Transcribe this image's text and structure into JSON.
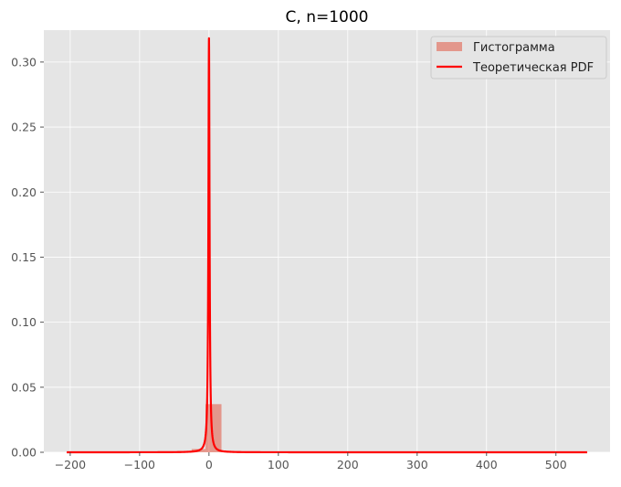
{
  "chart_data": {
    "type": "histogram",
    "title": "C, n=1000",
    "xlabel": "",
    "ylabel": "",
    "xlim": [
      -238,
      578
    ],
    "ylim": [
      0,
      0.3245
    ],
    "xticks": [
      -200,
      -100,
      0,
      100,
      200,
      300,
      400,
      500
    ],
    "xtick_labels": [
      "−200",
      "−100",
      "0",
      "100",
      "200",
      "300",
      "400",
      "500"
    ],
    "yticks": [
      0.0,
      0.05,
      0.1,
      0.15,
      0.2,
      0.25,
      0.3
    ],
    "ytick_labels": [
      "0.00",
      "0.05",
      "0.10",
      "0.15",
      "0.20",
      "0.25",
      "0.30"
    ],
    "grid": true,
    "legend_position": "top-right",
    "histogram": {
      "name": "Гистограмма",
      "color": "#E24A33",
      "opacity": 0.5,
      "bins": [
        {
          "x0": -205,
          "x1": -185,
          "density": 5e-05
        },
        {
          "x0": -185,
          "x1": -165,
          "density": 5e-05
        },
        {
          "x0": -165,
          "x1": -145,
          "density": 0.0001
        },
        {
          "x0": -145,
          "x1": -125,
          "density": 0.0001
        },
        {
          "x0": -125,
          "x1": -105,
          "density": 0.00015
        },
        {
          "x0": -105,
          "x1": -85,
          "density": 0.0002
        },
        {
          "x0": -85,
          "x1": -65,
          "density": 0.00025
        },
        {
          "x0": -65,
          "x1": -45,
          "density": 0.0004
        },
        {
          "x0": -45,
          "x1": -25,
          "density": 0.0008
        },
        {
          "x0": -25,
          "x1": -5,
          "density": 0.0025
        },
        {
          "x0": -5,
          "x1": 18,
          "density": 0.037
        },
        {
          "x0": 18,
          "x1": 38,
          "density": 0.0008
        },
        {
          "x0": 38,
          "x1": 58,
          "density": 0.0004
        },
        {
          "x0": 58,
          "x1": 78,
          "density": 0.00025
        },
        {
          "x0": 78,
          "x1": 98,
          "density": 0.0002
        }
      ]
    },
    "pdf": {
      "name": "Теоретическая PDF",
      "color": "#FF0000",
      "distribution": "cauchy",
      "location": 0,
      "scale": 1,
      "x_range": [
        -205,
        545
      ],
      "peak": 0.308
    }
  }
}
